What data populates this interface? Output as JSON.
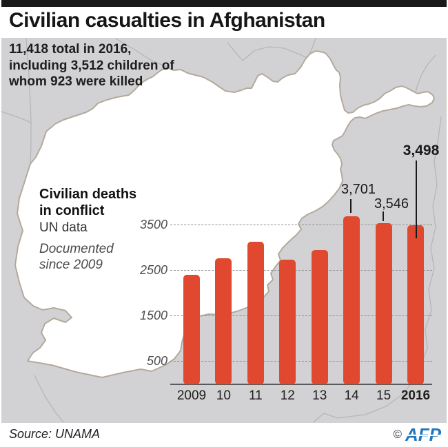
{
  "header": {
    "title": "Civilian casualties in Afghanistan"
  },
  "subtitle": {
    "line1": "11,418 total in 2016,",
    "line2": "including 3,512 children of",
    "line3": "whom 923 were killed"
  },
  "chart_label": {
    "title_line1": "Civilian deaths",
    "title_line2": "in conflict",
    "data_source": "UN data",
    "note_line1": "Documented",
    "note_line2": "since 2009"
  },
  "chart_data": {
    "type": "bar",
    "title": "Civilian deaths in conflict",
    "categories": [
      "2009",
      "10",
      "11",
      "12",
      "13",
      "14",
      "15",
      "2016"
    ],
    "values": [
      2410,
      2780,
      3130,
      2740,
      2950,
      3701,
      3546,
      3498
    ],
    "value_labels": [
      {
        "category": "14",
        "text": "3,701",
        "bold": false
      },
      {
        "category": "15",
        "text": "3,546",
        "bold": false
      },
      {
        "category": "2016",
        "text": "3,498",
        "bold": true
      }
    ],
    "yticks": [
      "500",
      "1500",
      "2500",
      "3500"
    ],
    "ylim": [
      0,
      3900
    ],
    "xlabel": "",
    "ylabel": "",
    "grid": "horizontal-dashed",
    "legend": "none",
    "x_bold_category": "2016",
    "bar_color": "#e0492f"
  },
  "footer": {
    "source": "Source: UNAMA",
    "copyright_symbol": "©",
    "agency": "AFP"
  },
  "colors": {
    "bar": "#e0492f",
    "map_background": "#d2d2d4",
    "country_fill": "#ffffff",
    "country_outline": "#b3a99c",
    "neighbor_border": "#b6b6b8",
    "afp_blue": "#2176bd",
    "top_bar": "#1a1a1a"
  }
}
